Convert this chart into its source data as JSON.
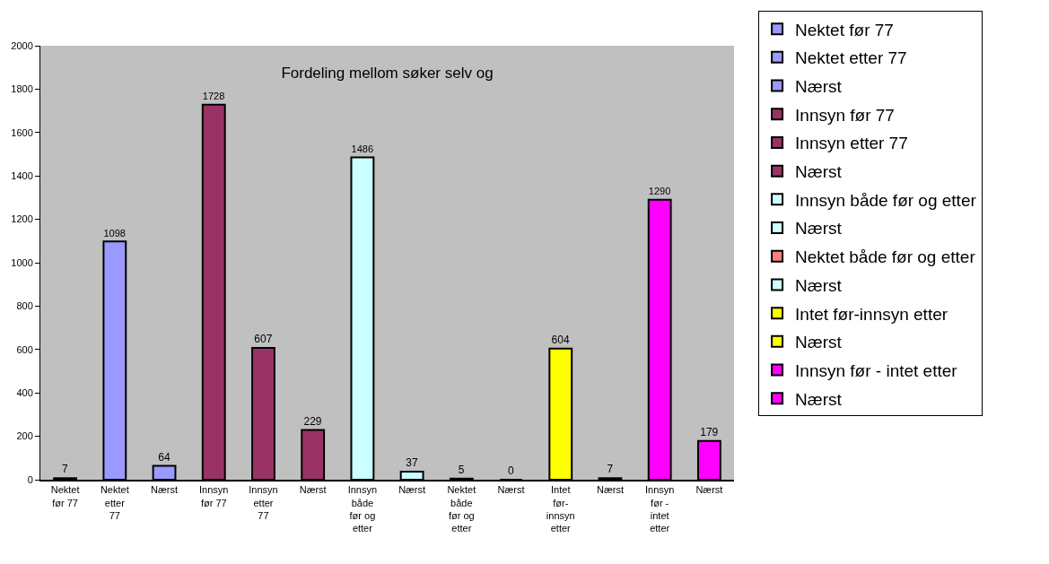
{
  "chart_data": {
    "type": "bar",
    "title": "Fordeling mellom søker selv og",
    "categories": [
      "Nektet før 77",
      "Nektet etter 77",
      "Nærst",
      "Innsyn før 77",
      "Innsyn etter 77",
      "Nærst",
      "Innsyn både før og etter",
      "Nærst",
      "Nektet både før og etter",
      "Nærst",
      "Intet før-innsyn etter",
      "Nærst",
      "Innsyn før - intet etter",
      "Nærst"
    ],
    "series": [
      {
        "name": "Nektet før 77",
        "color": "#9999ff",
        "values": [
          7,
          null,
          null,
          null,
          null,
          null,
          null,
          null,
          null,
          null,
          null,
          null,
          null,
          null
        ]
      },
      {
        "name": "Nektet etter 77",
        "color": "#9999ff",
        "values": [
          null,
          1098,
          null,
          null,
          null,
          null,
          null,
          null,
          null,
          null,
          null,
          null,
          null,
          null
        ]
      },
      {
        "name": "Nærst",
        "color": "#9999ff",
        "values": [
          null,
          null,
          64,
          null,
          null,
          null,
          null,
          null,
          null,
          null,
          null,
          null,
          null,
          null
        ]
      },
      {
        "name": "Innsyn før 77",
        "color": "#993366",
        "values": [
          null,
          null,
          null,
          1728,
          null,
          null,
          null,
          null,
          null,
          null,
          null,
          null,
          null,
          null
        ]
      },
      {
        "name": "Innsyn etter 77",
        "color": "#993366",
        "values": [
          null,
          null,
          null,
          null,
          607,
          null,
          null,
          null,
          null,
          null,
          null,
          null,
          null,
          null
        ]
      },
      {
        "name": "Nærst",
        "color": "#993366",
        "values": [
          null,
          null,
          null,
          null,
          null,
          229,
          null,
          null,
          null,
          null,
          null,
          null,
          null,
          null
        ]
      },
      {
        "name": "Innsyn både før og etter",
        "color": "#ccffff",
        "values": [
          null,
          null,
          null,
          null,
          null,
          null,
          1486,
          null,
          null,
          null,
          null,
          null,
          null,
          null
        ]
      },
      {
        "name": "Nærst",
        "color": "#ccffff",
        "values": [
          null,
          null,
          null,
          null,
          null,
          null,
          null,
          37,
          null,
          null,
          null,
          null,
          null,
          null
        ]
      },
      {
        "name": "Nektet både før og etter",
        "color": "#ff8080",
        "values": [
          null,
          null,
          null,
          null,
          null,
          null,
          null,
          null,
          5,
          null,
          null,
          null,
          null,
          null
        ]
      },
      {
        "name": "Nærst",
        "color": "#ccffff",
        "values": [
          null,
          null,
          null,
          null,
          null,
          null,
          null,
          null,
          null,
          0,
          null,
          null,
          null,
          null
        ]
      },
      {
        "name": "Intet før-innsyn etter",
        "color": "#ffff00",
        "values": [
          null,
          null,
          null,
          null,
          null,
          null,
          null,
          null,
          null,
          null,
          604,
          null,
          null,
          null
        ]
      },
      {
        "name": "Nærst",
        "color": "#ffff00",
        "values": [
          null,
          null,
          null,
          null,
          null,
          null,
          null,
          null,
          null,
          null,
          null,
          7,
          null,
          null
        ]
      },
      {
        "name": "Innsyn før - intet etter",
        "color": "#ff00ff",
        "values": [
          null,
          null,
          null,
          null,
          null,
          null,
          null,
          null,
          null,
          null,
          null,
          null,
          1290,
          null
        ]
      },
      {
        "name": "Nærst",
        "color": "#ff00ff",
        "values": [
          null,
          null,
          null,
          null,
          null,
          null,
          null,
          null,
          null,
          null,
          null,
          null,
          null,
          179
        ]
      }
    ],
    "ylim": [
      0,
      2000
    ],
    "yticks": [
      0,
      200,
      400,
      600,
      800,
      1000,
      1200,
      1400,
      1600,
      1800,
      2000
    ],
    "data_labels": true,
    "grid": false,
    "legend": "right"
  }
}
